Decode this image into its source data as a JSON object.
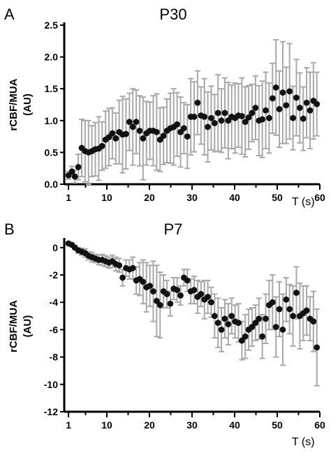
{
  "chart_data": [
    {
      "type": "scatter",
      "panel_letter": "A",
      "title": "P30",
      "ylabel_line1": "rCBF/MUA",
      "ylabel_line2": "(AU)",
      "xlabel": "T (s)",
      "xlim": [
        0,
        60
      ],
      "ylim": [
        0,
        2.5
      ],
      "xticks": [
        1,
        10,
        20,
        30,
        40,
        50,
        60
      ],
      "yticks": [
        0.0,
        0.5,
        1.0,
        1.5,
        2.0,
        2.5
      ],
      "ytick_labels": [
        "0.0",
        "0.5",
        "1.0",
        "1.5",
        "2.0",
        "2.5"
      ],
      "marker_color": "#111111",
      "errorbar_color": "#a9a9a9",
      "x": [
        1,
        1.8,
        2.5,
        3.3,
        4.1,
        4.9,
        5.7,
        6.5,
        7.3,
        8.1,
        8.9,
        9.7,
        10.5,
        11.3,
        12.1,
        12.9,
        13.7,
        14.5,
        15.3,
        16.1,
        16.9,
        17.7,
        18.5,
        19.3,
        20.1,
        20.9,
        21.7,
        22.5,
        23.3,
        24.1,
        24.9,
        25.7,
        26.5,
        27.3,
        28.1,
        28.9,
        29.7,
        30.5,
        31.3,
        32.1,
        32.9,
        33.7,
        34.5,
        35.3,
        36.1,
        36.9,
        37.7,
        38.5,
        39.3,
        40.1,
        40.9,
        41.7,
        42.5,
        43.3,
        44.1,
        44.9,
        45.7,
        46.5,
        47.3,
        48.1,
        48.9,
        49.7,
        50.5,
        51.3,
        52.1,
        52.9,
        53.7,
        54.5,
        55.3,
        56.1,
        56.9,
        57.7,
        58.5,
        59.3
      ],
      "values": [
        0.14,
        0.2,
        0.12,
        0.27,
        0.57,
        0.52,
        0.5,
        0.52,
        0.55,
        0.56,
        0.6,
        0.7,
        0.74,
        0.8,
        0.72,
        0.82,
        0.78,
        0.79,
        0.98,
        0.9,
        0.98,
        0.84,
        0.72,
        0.8,
        0.84,
        0.84,
        0.82,
        0.7,
        0.76,
        0.84,
        0.88,
        0.9,
        0.94,
        0.82,
        0.88,
        0.75,
        1.06,
        1.06,
        1.28,
        1.08,
        1.06,
        0.9,
        1.04,
        0.96,
        1.12,
        1.0,
        1.12,
        1.0,
        1.06,
        1.04,
        1.08,
        1.07,
        0.98,
        1.05,
        1.12,
        1.2,
        1.0,
        1.02,
        1.16,
        1.04,
        1.35,
        1.52,
        1.18,
        1.44,
        1.24,
        1.46,
        1.04,
        1.36,
        1.2,
        1.03,
        1.28,
        1.16,
        1.31,
        1.26
      ],
      "errors": [
        0.06,
        0.08,
        0.1,
        0.2,
        0.45,
        0.48,
        0.5,
        0.4,
        0.42,
        0.5,
        0.38,
        0.45,
        0.45,
        0.4,
        0.4,
        0.5,
        0.6,
        0.55,
        0.45,
        0.6,
        0.5,
        0.55,
        0.65,
        0.5,
        0.45,
        0.55,
        0.6,
        0.5,
        0.45,
        0.5,
        0.55,
        0.6,
        0.5,
        0.55,
        0.4,
        0.5,
        0.6,
        0.55,
        0.5,
        0.45,
        0.6,
        0.55,
        0.5,
        0.45,
        0.6,
        0.5,
        0.55,
        0.6,
        0.5,
        0.55,
        0.5,
        0.6,
        0.55,
        0.5,
        0.45,
        0.5,
        0.55,
        0.6,
        0.6,
        0.55,
        0.55,
        0.75,
        0.6,
        0.8,
        0.6,
        0.75,
        0.5,
        0.6,
        0.55,
        0.5,
        0.55,
        0.6,
        0.6,
        0.5
      ]
    },
    {
      "type": "scatter",
      "panel_letter": "B",
      "title": "P7",
      "ylabel_line1": "rCBF/MUA",
      "ylabel_line2": "(AU)",
      "xlabel": "T (s)",
      "xlim": [
        0,
        60
      ],
      "ylim": [
        -12,
        0.5
      ],
      "xticks": [
        1,
        10,
        20,
        30,
        40,
        50,
        60
      ],
      "yticks": [
        0,
        -2,
        -4,
        -6,
        -8,
        -10,
        -12
      ],
      "ytick_labels": [
        "0",
        "-2",
        "-4",
        "-6",
        "-8",
        "-10",
        "-12"
      ],
      "marker_color": "#111111",
      "errorbar_color": "#a9a9a9",
      "x": [
        1,
        1.8,
        2.5,
        3.3,
        4.1,
        4.9,
        5.7,
        6.5,
        7.3,
        8.1,
        8.9,
        9.7,
        10.5,
        11.3,
        12.1,
        12.9,
        13.7,
        14.5,
        15.3,
        16.1,
        16.9,
        17.7,
        18.5,
        19.3,
        20.1,
        20.9,
        21.7,
        22.5,
        23.3,
        24.1,
        24.9,
        25.7,
        26.5,
        27.3,
        28.1,
        28.9,
        29.7,
        30.5,
        31.3,
        32.1,
        32.9,
        33.7,
        34.5,
        35.3,
        36.1,
        36.9,
        37.7,
        38.5,
        39.3,
        40.1,
        40.9,
        41.7,
        42.5,
        43.3,
        44.1,
        44.9,
        45.7,
        46.5,
        47.3,
        48.1,
        48.9,
        49.7,
        50.5,
        51.3,
        52.1,
        52.9,
        53.7,
        54.5,
        55.3,
        56.1,
        56.9,
        57.7,
        58.5,
        59.3
      ],
      "values": [
        0.3,
        0.2,
        0.0,
        -0.2,
        -0.3,
        -0.4,
        -0.6,
        -0.7,
        -0.8,
        -0.9,
        -0.9,
        -1.0,
        -1.1,
        -1.0,
        -1.2,
        -1.3,
        -2.2,
        -1.5,
        -1.6,
        -1.5,
        -2.4,
        -2.3,
        -2.5,
        -2.9,
        -2.8,
        -3.2,
        -3.9,
        -4.2,
        -3.2,
        -3.4,
        -4.1,
        -3.0,
        -3.1,
        -3.5,
        -2.2,
        -2.4,
        -3.2,
        -3.1,
        -3.6,
        -3.4,
        -3.8,
        -3.6,
        -4.0,
        -5.0,
        -5.5,
        -6.0,
        -5.2,
        -5.6,
        -5.0,
        -5.4,
        -5.5,
        -6.8,
        -6.5,
        -6.0,
        -5.8,
        -5.5,
        -5.2,
        -6.5,
        -5.2,
        -4.2,
        -4.0,
        -5.8,
        -4.5,
        -6.0,
        -3.8,
        -4.5,
        -5.0,
        -3.3,
        -5.0,
        -4.8,
        -4.6,
        -5.2,
        -5.4,
        -7.3
      ],
      "errors": [
        0.1,
        0.1,
        0.15,
        0.2,
        0.25,
        0.3,
        0.3,
        0.35,
        0.3,
        0.35,
        0.4,
        0.4,
        0.4,
        0.45,
        0.5,
        0.5,
        0.6,
        0.6,
        0.7,
        0.8,
        1.0,
        1.2,
        1.6,
        1.8,
        1.5,
        2.2,
        2.6,
        2.4,
        1.2,
        1.0,
        0.9,
        0.8,
        0.9,
        0.7,
        0.6,
        0.8,
        0.9,
        1.0,
        1.2,
        0.9,
        1.4,
        1.2,
        1.1,
        1.6,
        1.8,
        1.6,
        1.4,
        1.5,
        1.3,
        1.2,
        1.4,
        1.4,
        1.6,
        1.5,
        1.4,
        1.3,
        1.5,
        1.6,
        1.8,
        1.8,
        2.0,
        2.2,
        2.0,
        2.6,
        1.6,
        1.8,
        2.2,
        1.9,
        2.4,
        2.0,
        1.8,
        1.6,
        2.2,
        2.8
      ]
    }
  ]
}
